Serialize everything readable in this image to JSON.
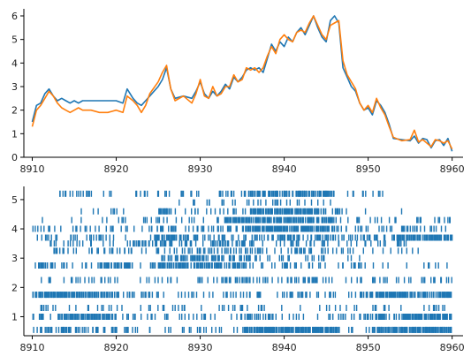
{
  "colors": {
    "series1": "#1f77b4",
    "series2": "#ff7f0e",
    "raster": "#1f77b4",
    "axis": "#000000"
  },
  "chart_data": [
    {
      "type": "line",
      "title": "",
      "xlabel": "",
      "ylabel": "",
      "xlim": [
        8909,
        8961.3
      ],
      "ylim": [
        0,
        6.3
      ],
      "xticks": [
        "8910",
        "8920",
        "8930",
        "8940",
        "8950",
        "8960"
      ],
      "yticks": [
        "0",
        "1",
        "2",
        "3",
        "4",
        "5",
        "6"
      ],
      "xticks_values": [
        8910,
        8920,
        8930,
        8940,
        8950,
        8960
      ],
      "yticks_values": [
        0,
        1,
        2,
        3,
        4,
        5,
        6
      ],
      "grid": false,
      "series": [
        {
          "x": [
            8910,
            8910.5,
            8911,
            8911.5,
            8912,
            8912.5,
            8913,
            8913.5,
            8914,
            8914.5,
            8915,
            8915.5,
            8916,
            8917,
            8918,
            8919,
            8920,
            8920.8,
            8921.3,
            8922,
            8922.5,
            8923,
            8923.5,
            8924,
            8925,
            8925.5,
            8926,
            8926.5,
            8927,
            8928,
            8929,
            8929.5,
            8930,
            8930.5,
            8931,
            8931.5,
            8932,
            8932.5,
            8933,
            8933.5,
            8934,
            8934.5,
            8935,
            8935.5,
            8936,
            8936.5,
            8937,
            8937.5,
            8938,
            8938.5,
            8939,
            8939.5,
            8940,
            8940.5,
            8941,
            8941.5,
            8942,
            8942.5,
            8943,
            8943.5,
            8944,
            8944.5,
            8945,
            8945.5,
            8946,
            8946.5,
            8947,
            8947.5,
            8948,
            8948.5,
            8949,
            8949.5,
            8950,
            8950.5,
            8951,
            8951.5,
            8952,
            8952.5,
            8953,
            8954,
            8955,
            8955.5,
            8956,
            8956.5,
            8957,
            8957.5,
            8958,
            8958.5,
            8959,
            8959.5,
            8960
          ],
          "y": [
            1.5,
            2.2,
            2.3,
            2.7,
            2.9,
            2.6,
            2.4,
            2.5,
            2.4,
            2.3,
            2.4,
            2.3,
            2.4,
            2.4,
            2.4,
            2.4,
            2.4,
            2.3,
            2.9,
            2.5,
            2.3,
            2.2,
            2.4,
            2.6,
            3.0,
            3.3,
            3.8,
            2.9,
            2.5,
            2.6,
            2.5,
            2.8,
            3.2,
            2.7,
            2.5,
            2.8,
            2.6,
            2.8,
            3.1,
            2.9,
            3.4,
            3.2,
            3.4,
            3.7,
            3.8,
            3.7,
            3.8,
            3.6,
            4.2,
            4.8,
            4.5,
            4.9,
            4.7,
            5.1,
            4.9,
            5.3,
            5.5,
            5.2,
            5.6,
            6.0,
            5.5,
            5.1,
            4.9,
            5.8,
            6.0,
            5.7,
            3.8,
            3.4,
            3.0,
            2.8,
            2.3,
            2.0,
            2.1,
            1.8,
            2.4,
            2.2,
            1.9,
            1.4,
            0.8,
            0.75,
            0.7,
            0.9,
            0.6,
            0.8,
            0.75,
            0.4,
            0.7,
            0.75,
            0.5,
            0.8,
            0.25
          ]
        },
        {
          "x": [
            8910,
            8910.5,
            8911,
            8911.5,
            8912,
            8912.5,
            8913,
            8913.5,
            8914,
            8914.5,
            8915,
            8915.5,
            8916,
            8917,
            8918,
            8919,
            8920,
            8920.8,
            8921.3,
            8922,
            8922.5,
            8923,
            8923.5,
            8924,
            8925,
            8925.5,
            8926,
            8926.5,
            8927,
            8928,
            8929,
            8929.5,
            8930,
            8930.5,
            8931,
            8931.5,
            8932,
            8932.5,
            8933,
            8933.5,
            8934,
            8934.5,
            8935,
            8935.5,
            8936,
            8936.5,
            8937,
            8937.5,
            8938,
            8938.5,
            8939,
            8939.5,
            8940,
            8940.5,
            8941,
            8941.5,
            8942,
            8942.5,
            8943,
            8943.5,
            8944,
            8944.5,
            8945,
            8945.5,
            8946,
            8946.5,
            8947,
            8947.5,
            8948,
            8948.5,
            8949,
            8949.5,
            8950,
            8950.5,
            8951,
            8951.5,
            8952,
            8952.5,
            8953,
            8954,
            8955,
            8955.5,
            8956,
            8956.5,
            8957,
            8957.5,
            8958,
            8958.5,
            8959,
            8959.5,
            8960
          ],
          "y": [
            1.3,
            2.0,
            2.2,
            2.5,
            2.8,
            2.6,
            2.3,
            2.1,
            2.0,
            1.9,
            2.0,
            2.1,
            2.0,
            2.0,
            1.9,
            1.9,
            2.0,
            1.9,
            2.6,
            2.4,
            2.2,
            1.9,
            2.2,
            2.7,
            3.2,
            3.6,
            3.9,
            2.9,
            2.4,
            2.6,
            2.3,
            2.7,
            3.3,
            2.6,
            2.5,
            3.0,
            2.6,
            2.7,
            3.0,
            3.0,
            3.5,
            3.2,
            3.3,
            3.8,
            3.7,
            3.8,
            3.6,
            3.8,
            4.3,
            4.7,
            4.4,
            5.0,
            5.2,
            5.0,
            4.9,
            5.3,
            5.4,
            5.3,
            5.7,
            6.0,
            5.6,
            5.2,
            5.0,
            5.6,
            5.7,
            5.8,
            4.1,
            3.5,
            3.2,
            2.9,
            2.3,
            2.0,
            2.2,
            1.9,
            2.5,
            2.1,
            1.8,
            1.3,
            0.85,
            0.7,
            0.75,
            1.15,
            0.65,
            0.75,
            0.6,
            0.45,
            0.75,
            0.7,
            0.6,
            0.7,
            0.35
          ]
        }
      ]
    },
    {
      "type": "scatter",
      "title": "",
      "xlabel": "",
      "ylabel": "",
      "xlim": [
        8909,
        8961.3
      ],
      "ylim": [
        0.35,
        5.45
      ],
      "xticks": [
        "8910",
        "8920",
        "8930",
        "8940",
        "8950",
        "8960"
      ],
      "yticks": [
        "1",
        "2",
        "3",
        "4",
        "5"
      ],
      "xticks_values": [
        8910,
        8920,
        8930,
        8940,
        8950,
        8960
      ],
      "yticks_values": [
        1,
        2,
        3,
        4,
        5
      ],
      "grid": false,
      "marker": "|",
      "raster_rows": [
        {
          "y": 0.55,
          "spans": [
            [
              8910,
              8920,
              0.45
            ],
            [
              8920,
              8935,
              0.25
            ],
            [
              8935,
              8946.5,
              0.9
            ],
            [
              8946.5,
              8950.5,
              0.2
            ],
            [
              8950.5,
              8960,
              0.85
            ]
          ]
        },
        {
          "y": 1.0,
          "spans": [
            [
              8910,
              8911.5,
              0.5
            ],
            [
              8911.5,
              8912.5,
              0.1
            ],
            [
              8913,
              8920,
              0.8
            ],
            [
              8920,
              8921,
              0.1
            ],
            [
              8921,
              8929,
              0.25
            ],
            [
              8929,
              8935,
              0.2
            ],
            [
              8935,
              8938,
              0.45
            ],
            [
              8938,
              8949.5,
              0.15
            ],
            [
              8949.5,
              8952,
              0.85
            ],
            [
              8952,
              8954,
              0.2
            ],
            [
              8954,
              8960,
              0.85
            ]
          ]
        },
        {
          "y": 1.3,
          "spans": [
            [
              8911,
              8912,
              0.3
            ],
            [
              8912,
              8960,
              0.12
            ]
          ]
        },
        {
          "y": 1.75,
          "spans": [
            [
              8910,
              8920,
              0.85
            ],
            [
              8920,
              8922,
              0.35
            ],
            [
              8922,
              8932,
              0.2
            ],
            [
              8932,
              8946,
              0.3
            ],
            [
              8946,
              8948,
              0.2
            ],
            [
              8948,
              8952,
              0.6
            ],
            [
              8952,
              8960,
              0.85
            ]
          ]
        },
        {
          "y": 2.25,
          "spans": [
            [
              8911,
              8916,
              0.2
            ],
            [
              8916,
              8926,
              0.15
            ],
            [
              8926,
              8936,
              0.3
            ],
            [
              8936,
              8946,
              0.25
            ],
            [
              8946,
              8960,
              0.2
            ]
          ]
        },
        {
          "y": 2.75,
          "spans": [
            [
              8910,
              8913,
              0.6
            ],
            [
              8913,
              8918,
              0.2
            ],
            [
              8918,
              8922,
              0.7
            ],
            [
              8922,
              8924,
              0.1
            ],
            [
              8924,
              8935,
              0.7
            ],
            [
              8935,
              8945,
              0.15
            ],
            [
              8946,
              8950,
              0.3
            ],
            [
              8950,
              8960,
              0.1
            ]
          ]
        },
        {
          "y": 3.0,
          "spans": [
            [
              8925,
              8936,
              0.5
            ],
            [
              8936,
              8946,
              0.15
            ],
            [
              8947,
              8949,
              0.15
            ]
          ]
        },
        {
          "y": 3.25,
          "spans": [
            [
              8912,
              8920,
              0.2
            ],
            [
              8920,
              8927,
              0.25
            ],
            [
              8927,
              8936,
              0.4
            ],
            [
              8936,
              8947,
              0.25
            ],
            [
              8947,
              8956,
              0.15
            ]
          ]
        },
        {
          "y": 3.5,
          "spans": [
            [
              8912,
              8915,
              0.25
            ],
            [
              8915,
              8922,
              0.15
            ],
            [
              8922,
              8929,
              0.45
            ],
            [
              8929,
              8931,
              0.1
            ],
            [
              8931,
              8936,
              0.5
            ],
            [
              8936,
              8949,
              0.2
            ],
            [
              8949,
              8955,
              0.25
            ]
          ]
        },
        {
          "y": 3.7,
          "spans": [
            [
              8910,
              8924,
              0.15
            ],
            [
              8924,
              8927,
              0.6
            ],
            [
              8927,
              8936,
              0.35
            ],
            [
              8936,
              8946,
              0.5
            ],
            [
              8946,
              8953,
              0.2
            ],
            [
              8953,
              8960,
              0.85
            ]
          ]
        },
        {
          "y": 4.0,
          "spans": [
            [
              8910,
              8921,
              0.15
            ],
            [
              8921,
              8926,
              0.3
            ],
            [
              8926,
              8935,
              0.35
            ],
            [
              8935,
              8946,
              0.8
            ],
            [
              8946,
              8953,
              0.2
            ],
            [
              8953,
              8960,
              0.25
            ]
          ]
        },
        {
          "y": 4.3,
          "spans": [
            [
              8911,
              8921,
              0.12
            ],
            [
              8921,
              8933,
              0.15
            ],
            [
              8933,
              8946,
              0.7
            ],
            [
              8946,
              8960,
              0.25
            ]
          ]
        },
        {
          "y": 4.6,
          "spans": [
            [
              8914,
              8925,
              0.1
            ],
            [
              8925,
              8926.5,
              0.8
            ],
            [
              8926.5,
              8936,
              0.25
            ],
            [
              8936,
              8944,
              0.9
            ],
            [
              8944,
              8947,
              0.5
            ],
            [
              8947,
              8955,
              0.08
            ]
          ]
        },
        {
          "y": 4.9,
          "spans": [
            [
              8925,
              8930,
              0.08
            ],
            [
              8930,
              8946,
              0.2
            ]
          ]
        },
        {
          "y": 5.2,
          "spans": [
            [
              8913,
              8921,
              0.25
            ],
            [
              8922,
              8932,
              0.15
            ],
            [
              8932,
              8936,
              0.15
            ],
            [
              8936,
              8946,
              0.7
            ],
            [
              8947,
              8952,
              0.2
            ]
          ]
        }
      ]
    }
  ]
}
